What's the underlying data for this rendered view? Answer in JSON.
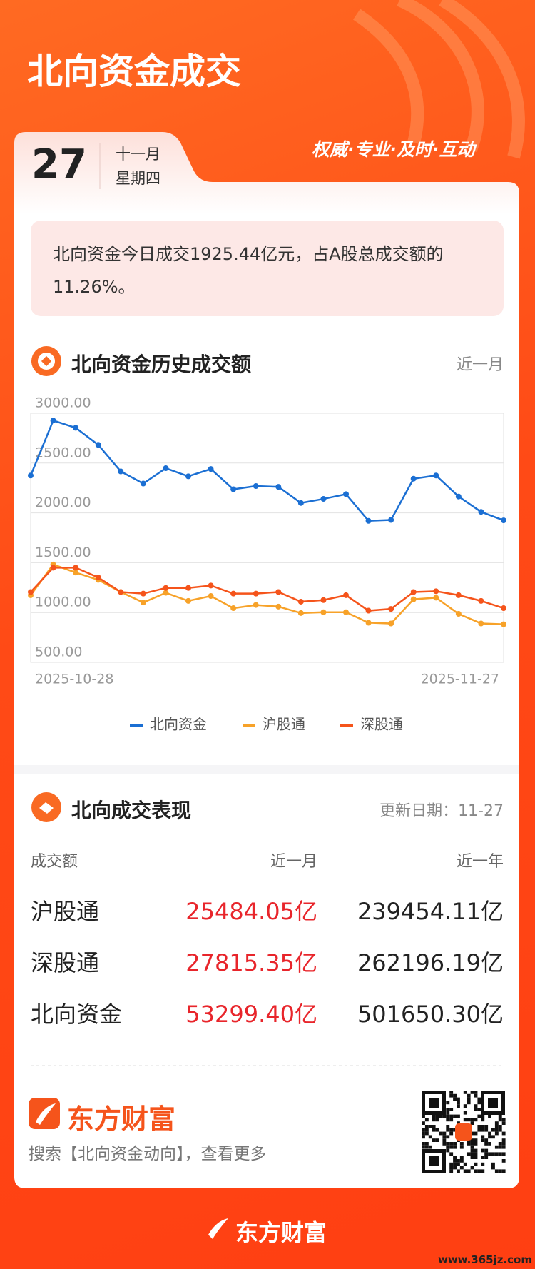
{
  "header": {
    "title": "北向资金成交",
    "day": "27",
    "month": "十一月",
    "weekday": "星期四",
    "tagline": "权威·专业·及时·互动"
  },
  "summary": "北向资金今日成交1925.44亿元，占A股总成交额的11.26%。",
  "chart_section": {
    "title": "北向资金历史成交额",
    "period": "近一月"
  },
  "chart_data": {
    "type": "line",
    "categories": [
      "2025-10-28",
      null,
      null,
      null,
      null,
      null,
      null,
      null,
      null,
      null,
      null,
      null,
      null,
      null,
      null,
      null,
      null,
      null,
      null,
      null,
      null,
      "2025-11-27"
    ],
    "series": [
      {
        "name": "北向资金",
        "color": "#1b6fd3",
        "values": [
          2375,
          2927,
          2854,
          2683,
          2416,
          2294,
          2448,
          2367,
          2440,
          2237,
          2269,
          2261,
          2099,
          2140,
          2188,
          1920,
          1929,
          2343,
          2375,
          2164,
          2010,
          1925
        ]
      },
      {
        "name": "沪股通",
        "color": "#f7a229",
        "values": [
          1174,
          1482,
          1401,
          1328,
          1206,
          1101,
          1198,
          1117,
          1166,
          1044,
          1076,
          1060,
          995,
          1003,
          1003,
          898,
          890,
          1133,
          1149,
          987,
          890,
          882
        ]
      },
      {
        "name": "深股通",
        "color": "#f5541b",
        "values": [
          1206,
          1450,
          1450,
          1352,
          1206,
          1190,
          1247,
          1247,
          1271,
          1190,
          1190,
          1206,
          1109,
          1125,
          1174,
          1019,
          1036,
          1206,
          1214,
          1174,
          1117,
          1044
        ]
      }
    ],
    "ylim": [
      500,
      3000
    ],
    "yticks": [
      {
        "value": 500,
        "label": "500.00"
      },
      {
        "value": 1000,
        "label": "1000.00"
      },
      {
        "value": 1500,
        "label": "1500.00"
      },
      {
        "value": 2000,
        "label": "2000.00"
      },
      {
        "value": 2500,
        "label": "2500.00"
      },
      {
        "value": 3000,
        "label": "3000.00"
      }
    ],
    "grid": true,
    "legend": "bottom"
  },
  "table_section": {
    "title": "北向成交表现",
    "update": "更新日期：11-27",
    "columns": [
      "成交额",
      "近一月",
      "近一年"
    ],
    "rows": [
      [
        "沪股通",
        "25484.05亿",
        "239454.11亿"
      ],
      [
        "深股通",
        "27815.35亿",
        "262196.19亿"
      ],
      [
        "北向资金",
        "53299.40亿",
        "501650.30亿"
      ]
    ]
  },
  "footer": {
    "brand": "东方财富",
    "search": "搜索【北向资金动向】，查看更多",
    "bottom_brand": "东方财富",
    "watermark": "www.365jz.com"
  }
}
